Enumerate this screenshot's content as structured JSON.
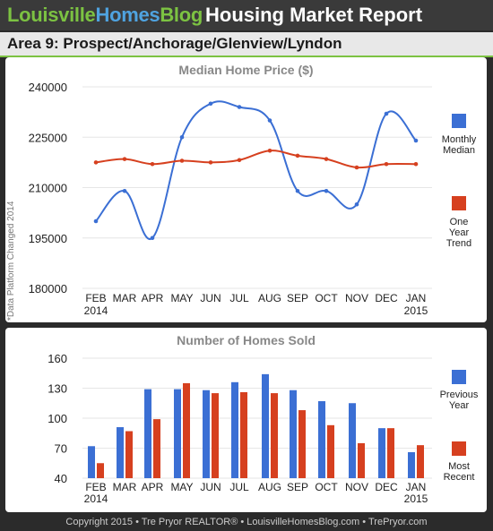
{
  "header": {
    "brand_part1": "Louisville",
    "brand_part2": "Homes",
    "brand_part3": "Blog",
    "report_title": "Housing Market Report",
    "area_title": "Area 9: Prospect/Anchorage/Glenview/Lyndon"
  },
  "side_note": "*Data Platform Changed 2014",
  "colors": {
    "blue": "#3b6fd4",
    "red": "#d6401f",
    "green": "#7cc242"
  },
  "chart_data": [
    {
      "type": "line",
      "title": "Median Home Price ($)",
      "categories": [
        "FEB",
        "MAR",
        "APR",
        "MAY",
        "JUN",
        "JUL",
        "AUG",
        "SEP",
        "OCT",
        "NOV",
        "DEC",
        "JAN"
      ],
      "category_years": [
        "2014",
        "",
        "",
        "",
        "",
        "",
        "",
        "",
        "",
        "",
        "",
        "2015"
      ],
      "yticks": [
        "240000",
        "225000",
        "210000",
        "195000",
        "180000"
      ],
      "ylim": [
        180000,
        240000
      ],
      "grid": true,
      "legend_position": "right",
      "series": [
        {
          "name": "Monthly Median",
          "legend_lines": [
            "Monthly",
            "Median"
          ],
          "color": "#3b6fd4",
          "values": [
            200000,
            209000,
            195000,
            225000,
            235000,
            234000,
            230000,
            209000,
            209000,
            205000,
            232000,
            224000
          ]
        },
        {
          "name": "One Year Trend",
          "legend_lines": [
            "One",
            "Year",
            "Trend"
          ],
          "color": "#d6401f",
          "values": [
            217500,
            218500,
            217000,
            218000,
            217500,
            218200,
            221000,
            219500,
            218500,
            216000,
            217000,
            217000
          ]
        }
      ]
    },
    {
      "type": "bar",
      "title": "Number of Homes Sold",
      "categories": [
        "FEB",
        "MAR",
        "APR",
        "MAY",
        "JUN",
        "JUL",
        "AUG",
        "SEP",
        "OCT",
        "NOV",
        "DEC",
        "JAN"
      ],
      "category_years": [
        "2014",
        "",
        "",
        "",
        "",
        "",
        "",
        "",
        "",
        "",
        "",
        "2015"
      ],
      "yticks": [
        "160",
        "130",
        "100",
        "70",
        "40"
      ],
      "ylim": [
        40,
        160
      ],
      "grid": true,
      "legend_position": "right",
      "series": [
        {
          "name": "Previous Year",
          "legend_lines": [
            "Previous",
            "Year"
          ],
          "color": "#3b6fd4",
          "values": [
            72,
            91,
            129,
            129,
            128,
            136,
            144,
            128,
            117,
            115,
            90,
            66
          ]
        },
        {
          "name": "Most Recent",
          "legend_lines": [
            "Most",
            "Recent"
          ],
          "color": "#d6401f",
          "values": [
            55,
            87,
            99,
            135,
            125,
            126,
            125,
            108,
            93,
            75,
            90,
            73
          ]
        }
      ]
    }
  ],
  "footer": "Copyright 2015 • Tre Pryor REALTOR® • LouisvilleHomesBlog.com • TrePryor.com"
}
